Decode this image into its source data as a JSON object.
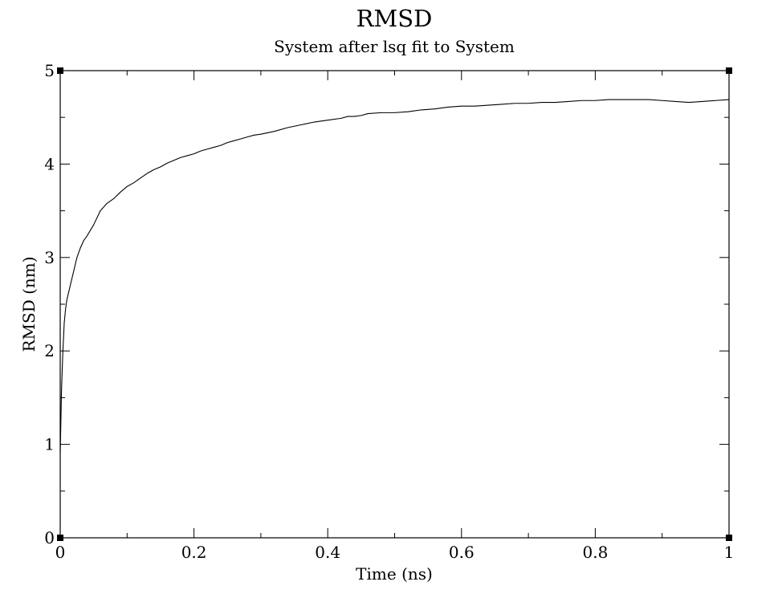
{
  "chart_data": {
    "type": "line",
    "title": "RMSD",
    "subtitle": "System after lsq fit to System",
    "xlabel": "Time (ns)",
    "ylabel": "RMSD (nm)",
    "xlim": [
      0,
      1
    ],
    "ylim": [
      0,
      5
    ],
    "x_ticks": [
      "0",
      "0.2",
      "0.4",
      "0.6",
      "0.8",
      "1"
    ],
    "y_ticks": [
      "0",
      "1",
      "2",
      "3",
      "4",
      "5"
    ],
    "grid": false,
    "legend": "none",
    "line_color": "#000000",
    "series": [
      {
        "x": [
          0,
          0.002,
          0.004,
          0.006,
          0.008,
          0.01,
          0.015,
          0.02,
          0.025,
          0.03,
          0.035,
          0.04,
          0.05,
          0.06,
          0.07,
          0.08,
          0.09,
          0.1,
          0.11,
          0.12,
          0.13,
          0.14,
          0.15,
          0.16,
          0.17,
          0.18,
          0.19,
          0.2,
          0.21,
          0.22,
          0.23,
          0.24,
          0.25,
          0.26,
          0.27,
          0.28,
          0.29,
          0.3,
          0.32,
          0.34,
          0.36,
          0.38,
          0.4,
          0.42,
          0.43,
          0.44,
          0.45,
          0.46,
          0.48,
          0.5,
          0.52,
          0.54,
          0.56,
          0.58,
          0.6,
          0.62,
          0.64,
          0.66,
          0.68,
          0.7,
          0.72,
          0.74,
          0.76,
          0.78,
          0.8,
          0.82,
          0.84,
          0.86,
          0.88,
          0.9,
          0.92,
          0.94,
          0.96,
          0.98,
          1.0
        ],
        "y": [
          0.9,
          1.6,
          2.0,
          2.3,
          2.45,
          2.55,
          2.7,
          2.85,
          3.0,
          3.1,
          3.18,
          3.23,
          3.35,
          3.5,
          3.58,
          3.63,
          3.7,
          3.76,
          3.8,
          3.85,
          3.9,
          3.94,
          3.97,
          4.01,
          4.04,
          4.07,
          4.09,
          4.11,
          4.14,
          4.16,
          4.18,
          4.2,
          4.23,
          4.25,
          4.27,
          4.29,
          4.31,
          4.32,
          4.35,
          4.39,
          4.42,
          4.45,
          4.47,
          4.49,
          4.51,
          4.51,
          4.52,
          4.54,
          4.55,
          4.55,
          4.56,
          4.58,
          4.59,
          4.61,
          4.62,
          4.62,
          4.63,
          4.64,
          4.65,
          4.65,
          4.66,
          4.66,
          4.67,
          4.68,
          4.68,
          4.69,
          4.69,
          4.69,
          4.69,
          4.68,
          4.67,
          4.66,
          4.67,
          4.68,
          4.69
        ]
      }
    ]
  }
}
